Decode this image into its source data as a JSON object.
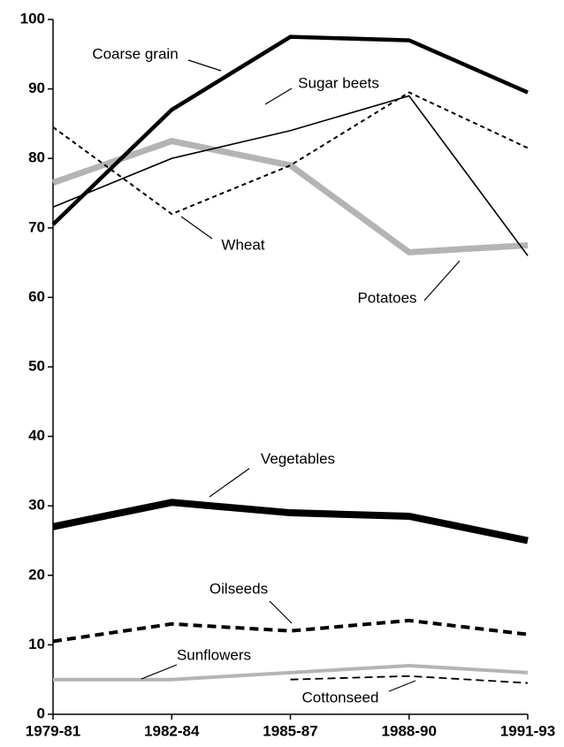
{
  "chart_data": {
    "type": "line",
    "categories": [
      "1979-81",
      "1982-84",
      "1985-87",
      "1988-90",
      "1991-93"
    ],
    "series": [
      {
        "name": "Coarse grain",
        "color": "#000000",
        "values": [
          70.5,
          87,
          97.5,
          97,
          89.5
        ]
      },
      {
        "name": "Sugar beets",
        "color": "#000000",
        "values": [
          73,
          80,
          84,
          89,
          66
        ]
      },
      {
        "name": "Wheat",
        "color": "#000000",
        "values": [
          84.5,
          72,
          79,
          89.5,
          81.5
        ]
      },
      {
        "name": "Potatoes",
        "color": "#b4b4b4",
        "values": [
          76.5,
          82.5,
          79,
          66.5,
          67.5
        ]
      },
      {
        "name": "Vegetables",
        "color": "#000000",
        "values": [
          27,
          30.5,
          29,
          28.5,
          25
        ]
      },
      {
        "name": "Oilseeds",
        "color": "#000000",
        "values": [
          10.5,
          13,
          12,
          13.5,
          11.5
        ]
      },
      {
        "name": "Sunflowers",
        "color": "#b4b4b4",
        "values": [
          5,
          5,
          6,
          7,
          6
        ]
      },
      {
        "name": "Cottonseed",
        "color": "#000000",
        "values": [
          null,
          null,
          5,
          5.5,
          4.5
        ]
      }
    ],
    "ylim": [
      0,
      100
    ],
    "yticks": [
      0,
      10,
      20,
      30,
      40,
      50,
      60,
      70,
      80,
      90,
      100
    ],
    "grid": false
  }
}
